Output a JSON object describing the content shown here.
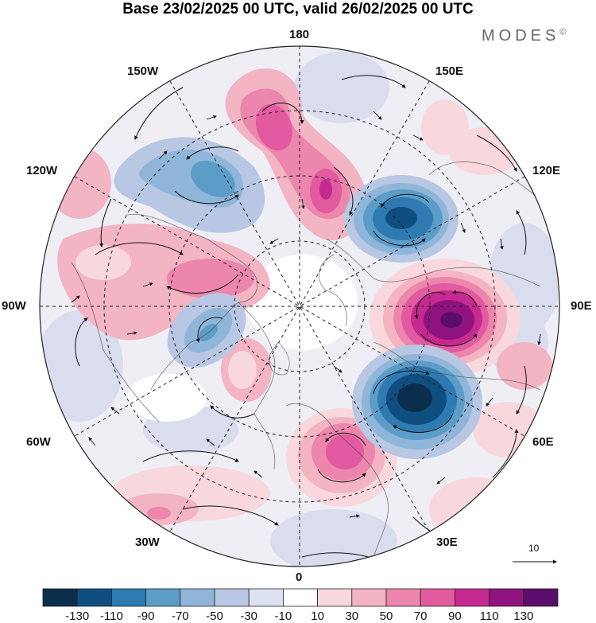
{
  "title": "Base 23/02/2025 00 UTC, valid 26/02/2025 00 UTC",
  "brand": "MODES",
  "brand_mark": "©",
  "longitude_labels": {
    "n180": "180",
    "w150": "150W",
    "e150": "150E",
    "w120": "120W",
    "e120": "120E",
    "w90": "90W",
    "e90": "90E",
    "w60": "60W",
    "e60": "60E",
    "w30": "30W",
    "e30": "30E",
    "s0": "0"
  },
  "reference_vector": {
    "label": "10"
  },
  "colorbar": {
    "ticks": [
      "-130",
      "-110",
      "-90",
      "-70",
      "-50",
      "-30",
      "-10",
      "10",
      "30",
      "50",
      "70",
      "90",
      "110",
      "130"
    ],
    "colors": [
      "#0c2e4e",
      "#0f4f80",
      "#2f7ab0",
      "#5c9dc8",
      "#8fb6d9",
      "#b8c7e3",
      "#dde2f0",
      "#ffffff",
      "#f8d8dc",
      "#f3b4c3",
      "#ec86ad",
      "#e25aa0",
      "#c42a8f",
      "#8f137f",
      "#5a0d6b"
    ]
  },
  "anomalies": [
    {
      "name": "ne-pacific-positive",
      "sign": "positive"
    },
    {
      "name": "east-siberia-negative",
      "sign": "negative"
    },
    {
      "name": "russia-positive",
      "sign": "positive"
    },
    {
      "name": "central-asia-negative",
      "sign": "negative"
    },
    {
      "name": "europe-positive",
      "sign": "positive"
    },
    {
      "name": "canada-negative",
      "sign": "negative"
    },
    {
      "name": "hudson-positive",
      "sign": "positive"
    }
  ]
}
